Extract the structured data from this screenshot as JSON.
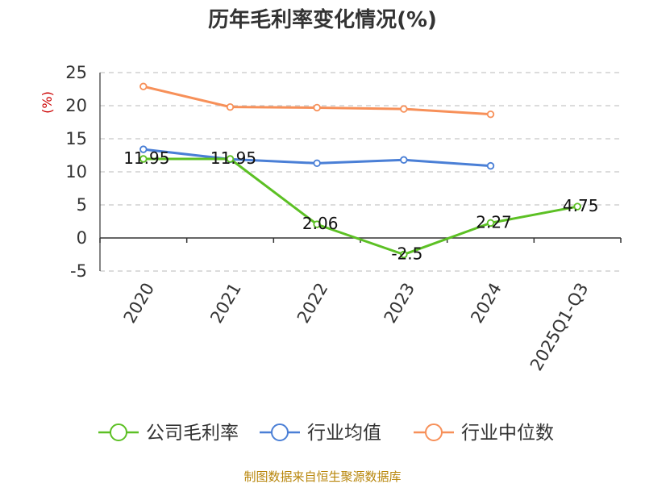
{
  "source": "制图数据来自恒生聚源数据库",
  "chart_data": {
    "type": "line",
    "title": "历年毛利率变化情况(%)",
    "ylabel": "(%)",
    "xlabel": "",
    "categories": [
      "2020",
      "2021",
      "2022",
      "2023",
      "2024",
      "2025Q1-Q3"
    ],
    "ylim": [
      -5,
      25
    ],
    "yticks": [
      -5,
      0,
      5,
      10,
      15,
      20,
      25
    ],
    "grid": true,
    "legend_position": "bottom",
    "series": [
      {
        "name": "公司毛利率",
        "color": "#5cc024",
        "values": [
          11.95,
          11.95,
          2.06,
          -2.5,
          2.27,
          4.75
        ],
        "labels": [
          "11.95",
          "11.95",
          "2.06",
          "-2.5",
          "2.27",
          "4.75"
        ]
      },
      {
        "name": "行业均值",
        "color": "#4a7fd6",
        "values": [
          13.4,
          11.9,
          11.3,
          11.8,
          10.9,
          null
        ]
      },
      {
        "name": "行业中位数",
        "color": "#f79059",
        "values": [
          22.9,
          19.8,
          19.7,
          19.5,
          18.7,
          null
        ]
      }
    ]
  }
}
